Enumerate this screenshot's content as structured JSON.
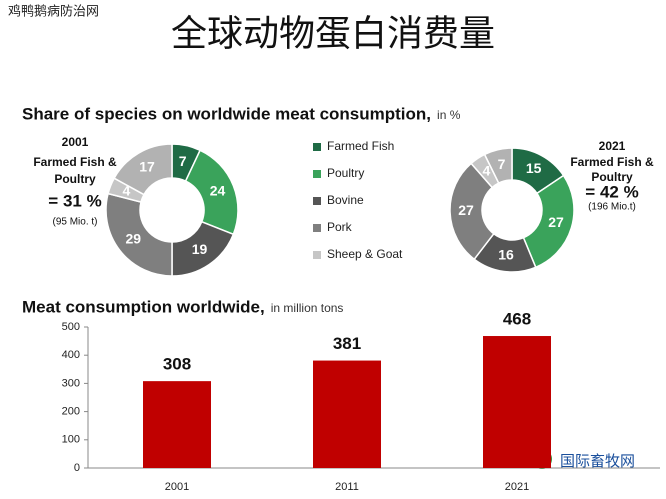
{
  "title": "全球动物蛋白消费量",
  "watermark_top": "鸡鸭鹅病防治网",
  "watermark_bottom": "国际畜牧网",
  "chart_data": [
    {
      "type": "donut",
      "title": "Share of species on worldwide meat consumption,",
      "subtitle": "in %",
      "categories": [
        "Farmed Fish",
        "Poultry",
        "Bovine",
        "Pork",
        "Sheep & Goat",
        null
      ],
      "values": [
        7,
        24,
        19,
        29,
        4,
        17
      ],
      "colors": [
        "#1f6b45",
        "#3aa35b",
        "#555555",
        "#7f7f7f",
        "#c6c6c6",
        "#b2b2b2"
      ],
      "annotations": [
        "2001",
        "Farmed Fish &",
        "Poultry",
        "= 31 %",
        "(95 Mio. t)"
      ]
    },
    {
      "type": "donut",
      "categories": [
        "Farmed Fish",
        "Poultry",
        "Bovine",
        "Pork",
        "Sheep & Goat",
        null
      ],
      "values": [
        15,
        27,
        16,
        27,
        4,
        7
      ],
      "colors": [
        "#1f6b45",
        "#3aa35b",
        "#555555",
        "#7f7f7f",
        "#c6c6c6",
        "#b2b2b2"
      ],
      "annotations": [
        "2021",
        "Farmed Fish &",
        "Poultry",
        "= 42 %",
        "(196 Mio.t)"
      ]
    },
    {
      "type": "bar",
      "title": "Meat consumption worldwide,",
      "subtitle": "in million tons",
      "categories": [
        "2001",
        "2011",
        "2021"
      ],
      "values": [
        308,
        381,
        468
      ],
      "color": "#c00000",
      "ylim": [
        0,
        500
      ],
      "yticks": [
        0,
        100,
        200,
        300,
        400,
        500
      ]
    }
  ]
}
